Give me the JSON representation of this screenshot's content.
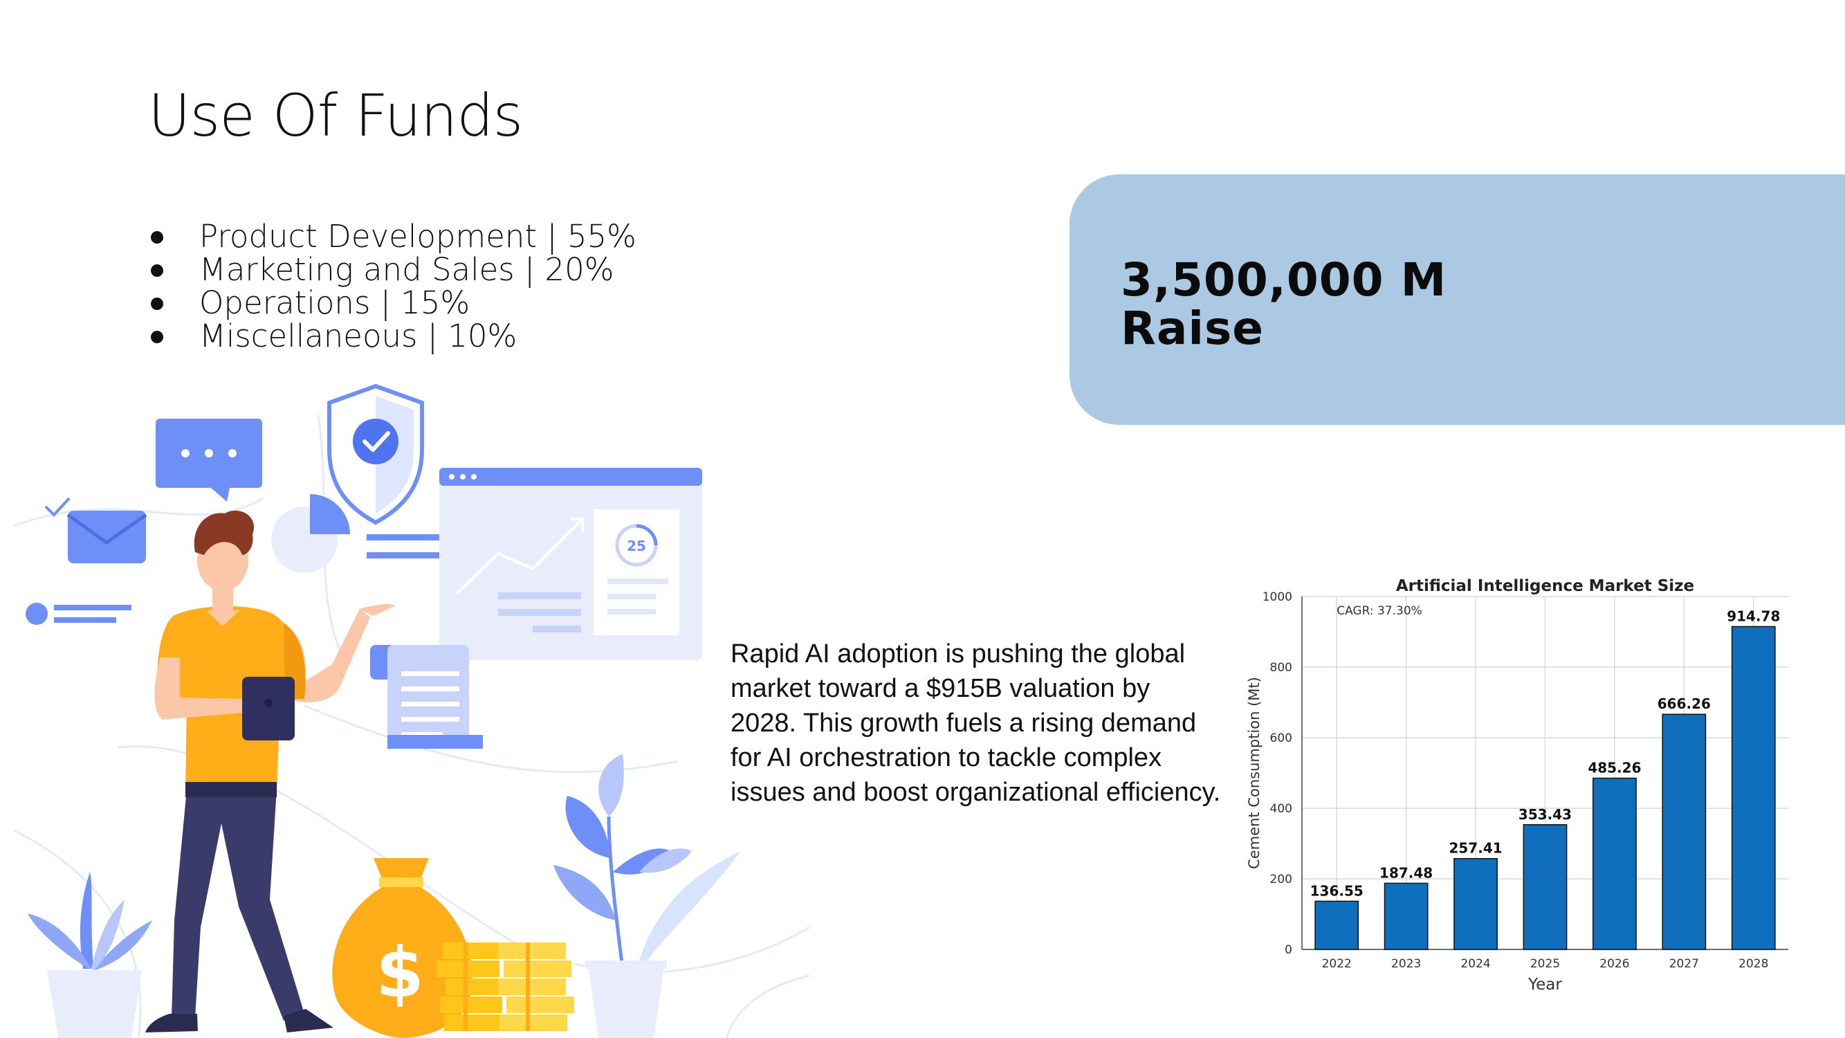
{
  "slide": {
    "title": "Use Of Funds",
    "bullets": [
      "Product Development  | 55%",
      "Marketing and Sales | 20%",
      "Operations | 15%",
      "Miscellaneous | 10%"
    ],
    "raise_amount": "3,500,000 M",
    "raise_label": "Raise",
    "description_lines": [
      "Rapid AI adoption is pushing the global",
      "market toward a $915B valuation by",
      "2028. This growth fuels a rising demand",
      "for AI orchestration to tackle complex",
      "issues and boost organizational efficiency."
    ],
    "illustration_badge": "25",
    "illustration_currency": "$"
  },
  "colors": {
    "accent_blue": "#6d8ff7",
    "card_blue": "#abc9e2",
    "bar_blue": "#0f6fbd",
    "shirt_orange": "#ffae1a",
    "pants_navy": "#3a3b6b"
  },
  "chart_data": {
    "type": "bar",
    "title": "Artificial Intelligence Market Size",
    "xlabel": "Year",
    "ylabel": "Cement Consumption (Mt)",
    "categories": [
      "2022",
      "2023",
      "2024",
      "2025",
      "2026",
      "2027",
      "2028"
    ],
    "values": [
      136.55,
      187.48,
      257.41,
      353.43,
      485.26,
      666.26,
      914.78
    ],
    "value_labels": [
      "136.55",
      "187.48",
      "257.41",
      "353.43",
      "485.26",
      "666.26",
      "914.78"
    ],
    "annotation": "CAGR: 37.30%",
    "ylim": [
      0,
      1000
    ],
    "yticks": [
      0,
      200,
      400,
      600,
      800,
      1000
    ],
    "grid": true,
    "legend": "none"
  }
}
